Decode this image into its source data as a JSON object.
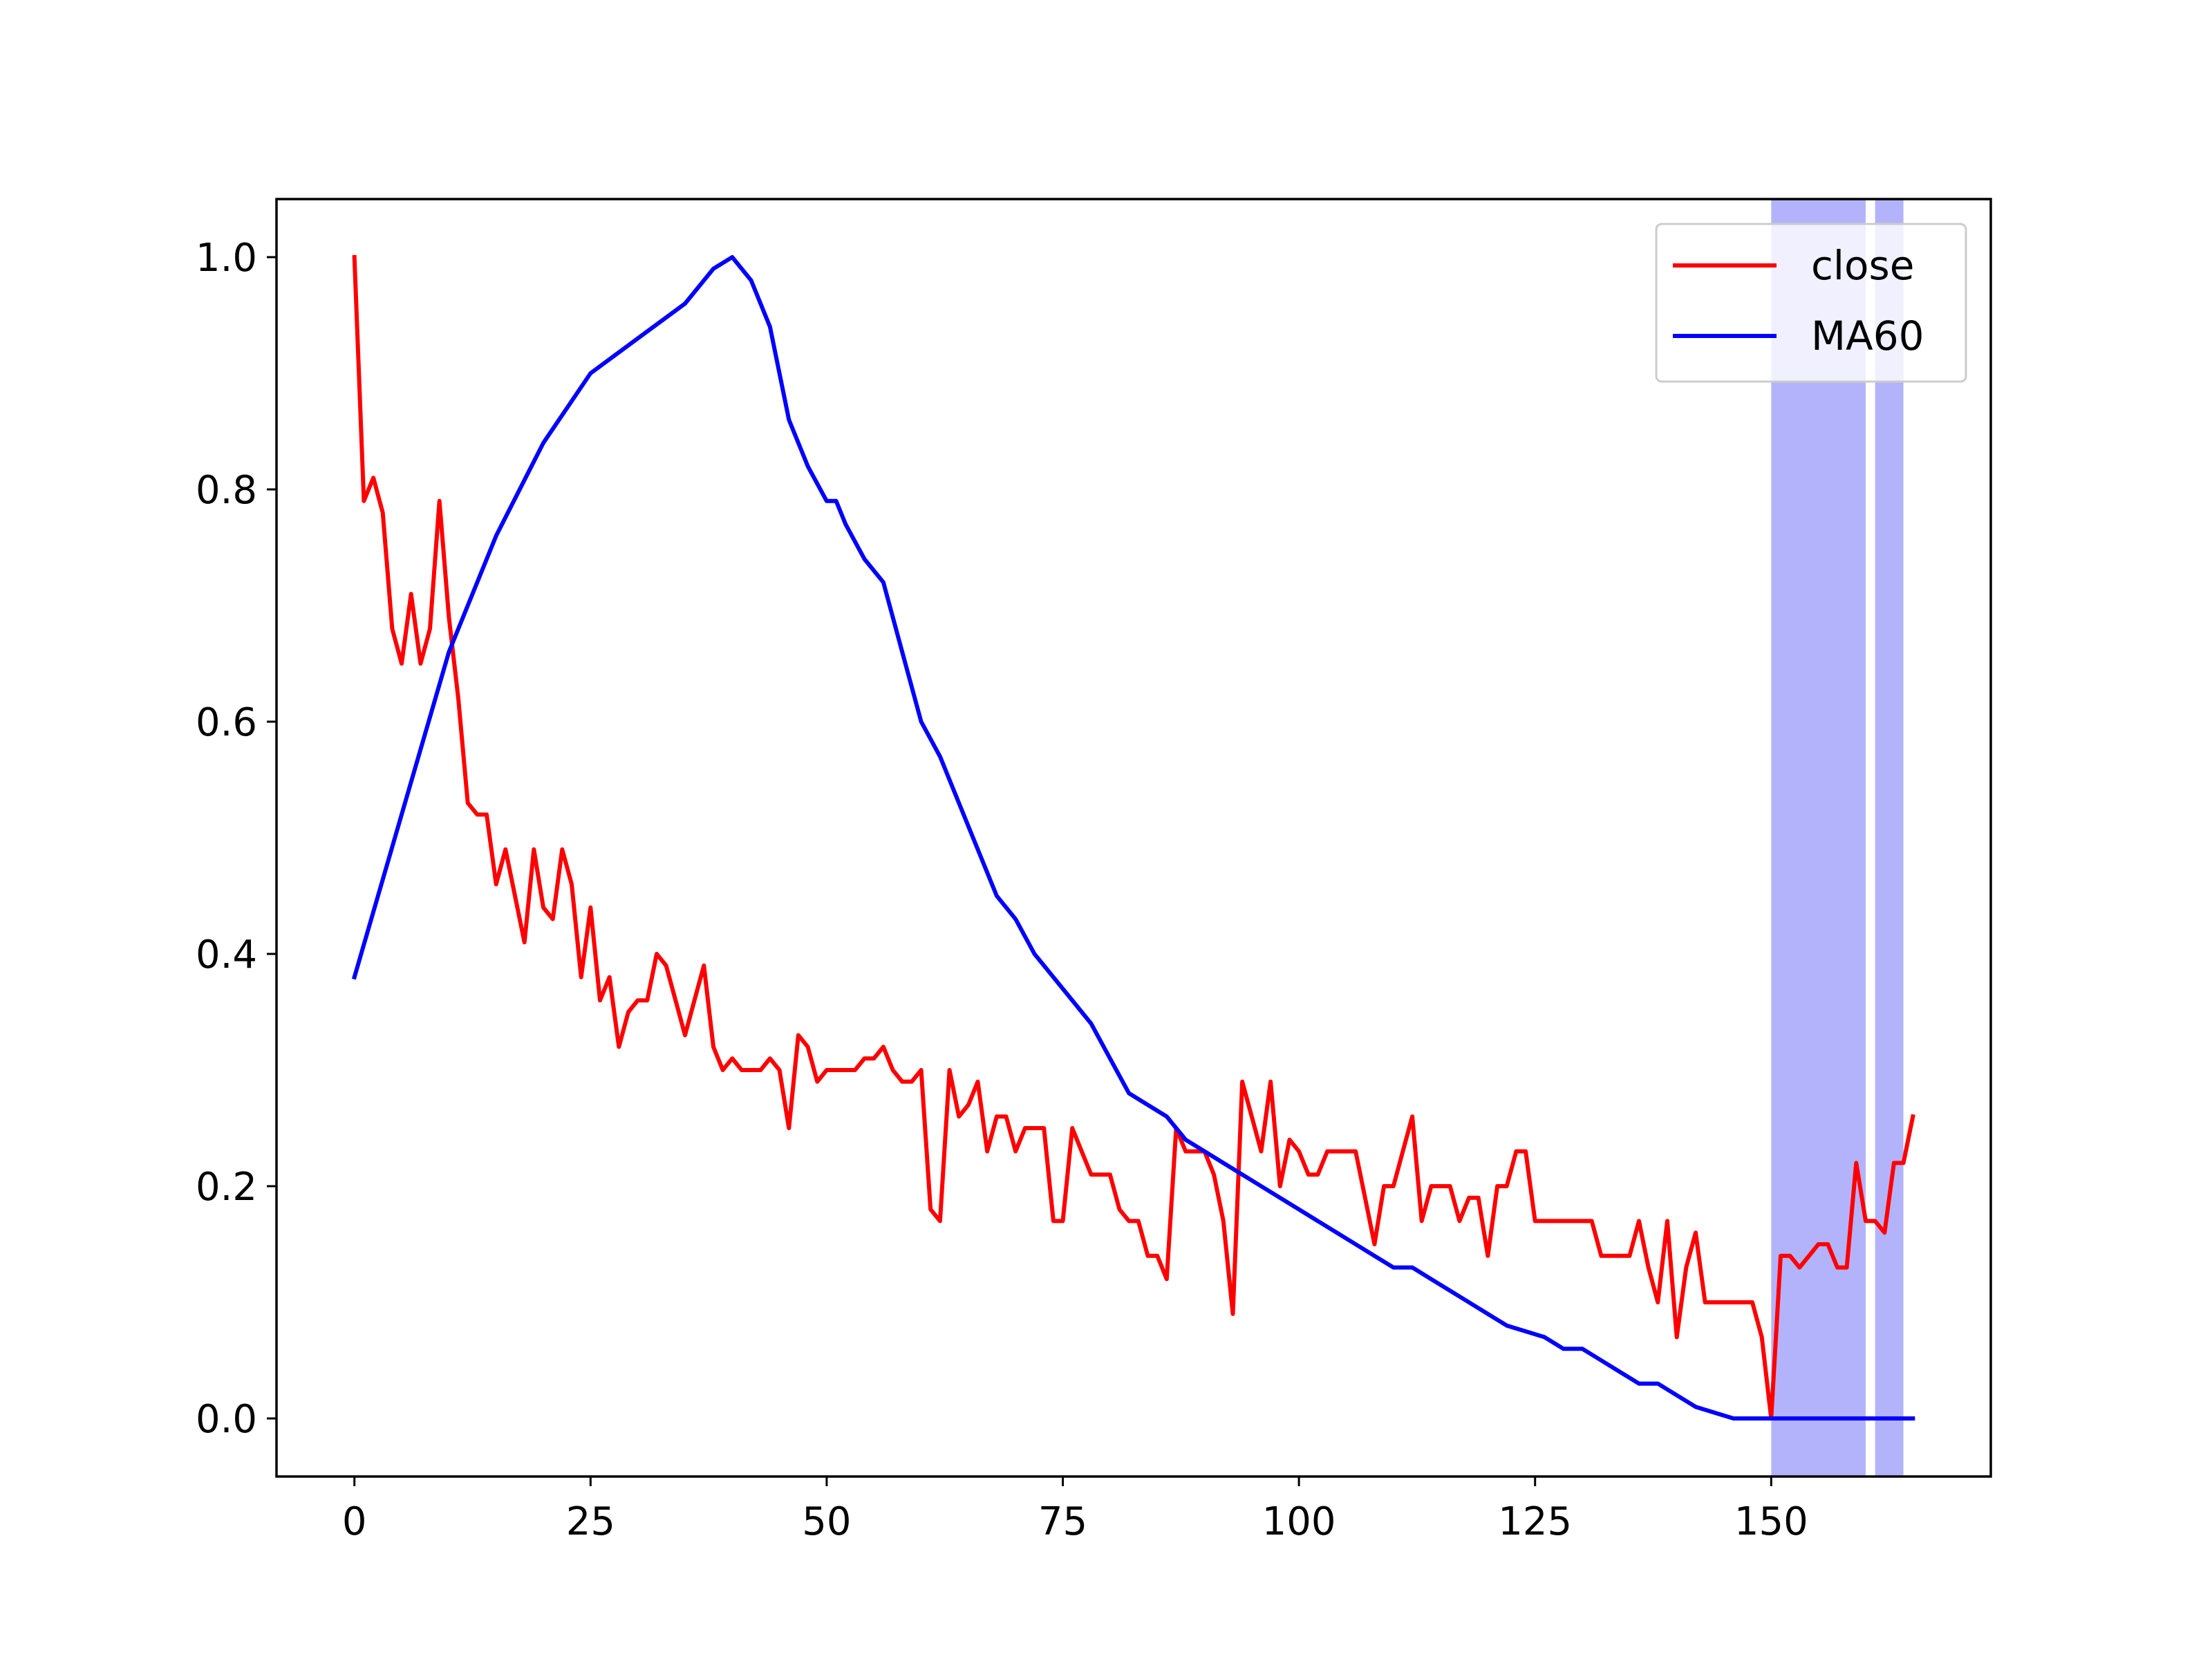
{
  "chart_data": {
    "type": "line",
    "title": "",
    "xlabel": "",
    "ylabel": "",
    "xlim": [
      -8.25,
      173.25
    ],
    "ylim": [
      -0.05,
      1.05
    ],
    "x_ticks": [
      0,
      25,
      50,
      75,
      100,
      125,
      150
    ],
    "x_tick_labels": [
      "0",
      "25",
      "50",
      "75",
      "100",
      "125",
      "150"
    ],
    "y_ticks": [
      0.0,
      0.2,
      0.4,
      0.6,
      0.8,
      1.0
    ],
    "y_tick_labels": [
      "0.0",
      "0.2",
      "0.4",
      "0.6",
      "0.8",
      "1.0"
    ],
    "grid": false,
    "legend_position": "top-right",
    "shaded_regions": [
      {
        "x_start": 150,
        "x_end": 160,
        "color": "#b3b3fb"
      },
      {
        "x_start": 161,
        "x_end": 164,
        "color": "#b3b3fb"
      }
    ],
    "series": [
      {
        "name": "close",
        "color": "#ff0000",
        "x": [
          0,
          1,
          2,
          3,
          4,
          5,
          6,
          7,
          8,
          9,
          10,
          11,
          12,
          13,
          14,
          15,
          16,
          17,
          18,
          19,
          20,
          21,
          22,
          23,
          24,
          25,
          26,
          27,
          28,
          29,
          30,
          31,
          32,
          33,
          34,
          35,
          36,
          37,
          38,
          39,
          40,
          41,
          42,
          43,
          44,
          45,
          46,
          47,
          48,
          49,
          50,
          51,
          52,
          53,
          54,
          55,
          56,
          57,
          58,
          59,
          60,
          61,
          62,
          63,
          64,
          65,
          66,
          67,
          68,
          69,
          70,
          71,
          72,
          73,
          74,
          75,
          76,
          77,
          78,
          79,
          80,
          81,
          82,
          83,
          84,
          85,
          86,
          87,
          88,
          89,
          90,
          91,
          92,
          93,
          94,
          95,
          96,
          97,
          98,
          99,
          100,
          101,
          102,
          103,
          104,
          105,
          106,
          107,
          108,
          109,
          110,
          111,
          112,
          113,
          114,
          115,
          116,
          117,
          118,
          119,
          120,
          121,
          122,
          123,
          124,
          125,
          126,
          127,
          128,
          129,
          130,
          131,
          132,
          133,
          134,
          135,
          136,
          137,
          138,
          139,
          140,
          141,
          142,
          143,
          144,
          145,
          146,
          147,
          148,
          149,
          150,
          151,
          152,
          153,
          154,
          155,
          156,
          157,
          158,
          159,
          160,
          161,
          162,
          163,
          164,
          165
        ],
        "values": [
          1.0,
          0.79,
          0.81,
          0.78,
          0.68,
          0.65,
          0.71,
          0.65,
          0.68,
          0.79,
          0.69,
          0.62,
          0.53,
          0.52,
          0.52,
          0.46,
          0.49,
          0.45,
          0.41,
          0.49,
          0.44,
          0.43,
          0.49,
          0.46,
          0.38,
          0.44,
          0.36,
          0.38,
          0.32,
          0.35,
          0.36,
          0.36,
          0.4,
          0.39,
          0.36,
          0.33,
          0.36,
          0.39,
          0.32,
          0.3,
          0.31,
          0.3,
          0.3,
          0.3,
          0.31,
          0.3,
          0.25,
          0.33,
          0.32,
          0.29,
          0.3,
          0.3,
          0.3,
          0.3,
          0.31,
          0.31,
          0.32,
          0.3,
          0.29,
          0.29,
          0.3,
          0.18,
          0.17,
          0.3,
          0.26,
          0.27,
          0.29,
          0.23,
          0.26,
          0.26,
          0.23,
          0.25,
          0.25,
          0.25,
          0.17,
          0.17,
          0.25,
          0.23,
          0.21,
          0.21,
          0.21,
          0.18,
          0.17,
          0.17,
          0.14,
          0.14,
          0.12,
          0.25,
          0.23,
          0.23,
          0.23,
          0.21,
          0.17,
          0.09,
          0.29,
          0.26,
          0.23,
          0.29,
          0.2,
          0.24,
          0.23,
          0.21,
          0.21,
          0.23,
          0.23,
          0.23,
          0.23,
          0.19,
          0.15,
          0.2,
          0.2,
          0.23,
          0.26,
          0.17,
          0.2,
          0.2,
          0.2,
          0.17,
          0.19,
          0.19,
          0.14,
          0.2,
          0.2,
          0.23,
          0.23,
          0.17,
          0.17,
          0.17,
          0.17,
          0.17,
          0.17,
          0.17,
          0.14,
          0.14,
          0.14,
          0.14,
          0.17,
          0.13,
          0.1,
          0.17,
          0.07,
          0.13,
          0.16,
          0.1,
          0.1,
          0.1,
          0.1,
          0.1,
          0.1,
          0.07,
          0.0,
          0.14,
          0.14,
          0.13,
          0.14,
          0.15,
          0.15,
          0.13,
          0.13,
          0.22,
          0.17,
          0.17,
          0.16,
          0.22,
          0.22,
          0.26
        ]
      },
      {
        "name": "MA60",
        "color": "#0000ff",
        "x": [
          0,
          5,
          10,
          15,
          20,
          25,
          30,
          35,
          38,
          40,
          42,
          44,
          46,
          48,
          50,
          51,
          52,
          54,
          56,
          58,
          60,
          62,
          64,
          66,
          68,
          70,
          72,
          74,
          76,
          78,
          80,
          82,
          84,
          86,
          88,
          90,
          92,
          94,
          96,
          98,
          100,
          102,
          104,
          106,
          108,
          110,
          112,
          114,
          116,
          118,
          120,
          122,
          124,
          126,
          128,
          130,
          132,
          134,
          136,
          138,
          140,
          142,
          144,
          146,
          148,
          150,
          152,
          154,
          156,
          158,
          160,
          162,
          164,
          165
        ],
        "values": [
          0.38,
          0.52,
          0.66,
          0.76,
          0.84,
          0.9,
          0.93,
          0.96,
          0.99,
          1.0,
          0.98,
          0.94,
          0.86,
          0.82,
          0.79,
          0.79,
          0.77,
          0.74,
          0.72,
          0.66,
          0.6,
          0.57,
          0.53,
          0.49,
          0.45,
          0.43,
          0.4,
          0.38,
          0.36,
          0.34,
          0.31,
          0.28,
          0.27,
          0.26,
          0.24,
          0.23,
          0.22,
          0.21,
          0.2,
          0.19,
          0.18,
          0.17,
          0.16,
          0.15,
          0.14,
          0.13,
          0.13,
          0.12,
          0.11,
          0.1,
          0.09,
          0.08,
          0.075,
          0.07,
          0.06,
          0.06,
          0.05,
          0.04,
          0.03,
          0.03,
          0.02,
          0.01,
          0.005,
          0.0,
          0.0,
          0.0,
          0.0,
          0.0,
          0.0,
          0.0,
          0.0,
          0.0,
          0.0,
          0.0
        ]
      }
    ]
  }
}
